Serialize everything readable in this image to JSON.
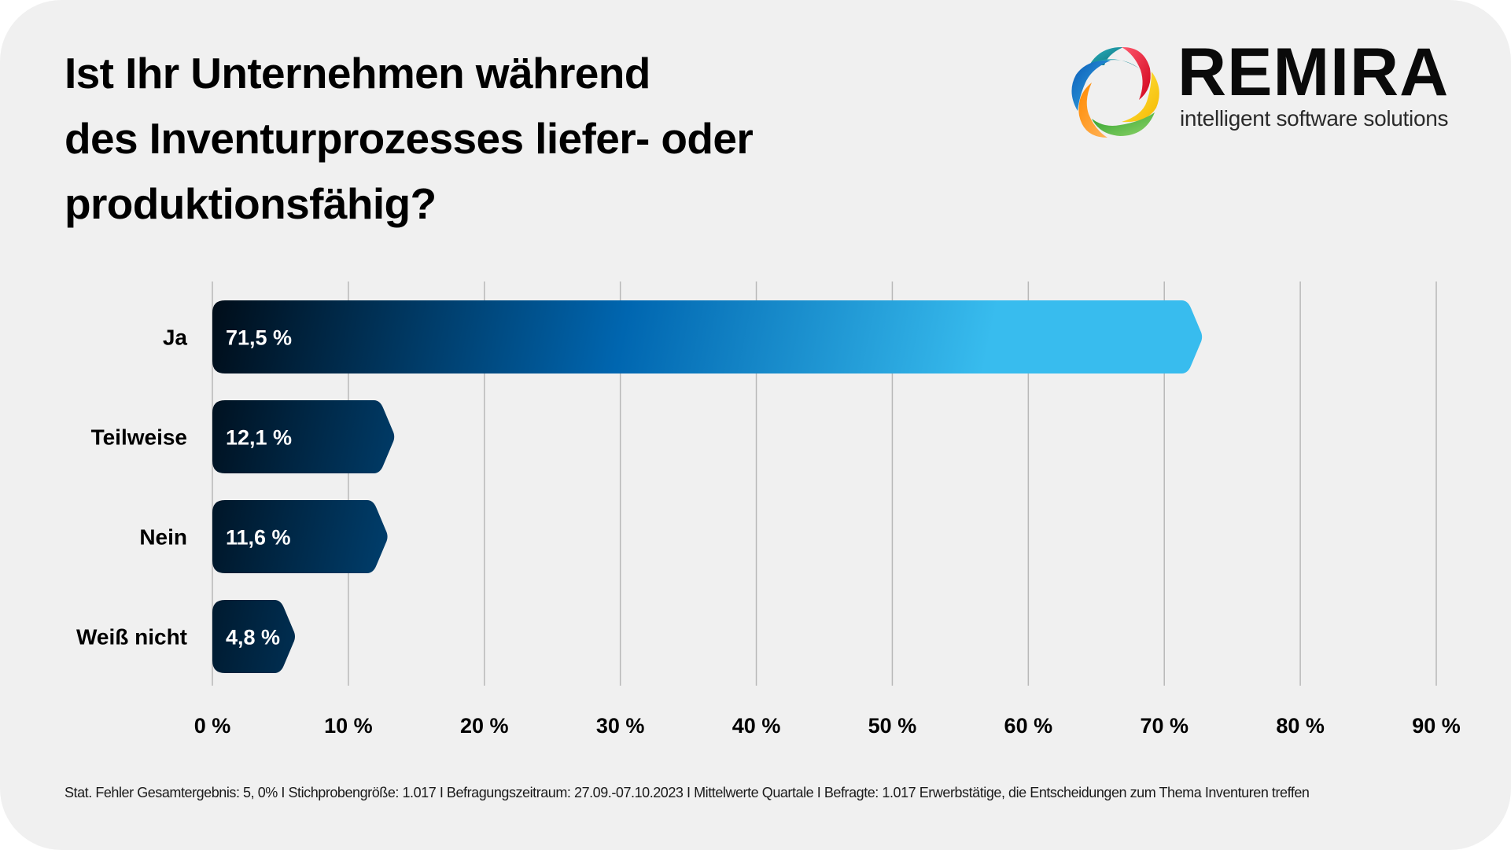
{
  "header": {
    "title_lines": [
      "Ist Ihr Unternehmen während",
      "des Inventurprozesses liefer- oder",
      "produktionsfähig?"
    ]
  },
  "logo": {
    "name": "REMIRA",
    "tagline": "intelligent software solutions",
    "icon": "remira-swirl-icon"
  },
  "chart_data": {
    "type": "bar",
    "orientation": "horizontal",
    "title": "Ist Ihr Unternehmen während des Inventurprozesses liefer- oder produktionsfähig?",
    "categories": [
      "Ja",
      "Teilweise",
      "Nein",
      "Weiß nicht"
    ],
    "values": [
      71.5,
      12.1,
      11.6,
      4.8
    ],
    "value_labels": [
      "71,5 %",
      "12,1 %",
      "11,6 %",
      "4,8 %"
    ],
    "xlabel": "",
    "ylabel": "",
    "xlim": [
      0,
      90
    ],
    "x_ticks": [
      0,
      10,
      20,
      30,
      40,
      50,
      60,
      70,
      80,
      90
    ],
    "x_tick_labels": [
      "0 %",
      "10 %",
      "20 %",
      "30 %",
      "40 %",
      "50 %",
      "60 %",
      "70 %",
      "80 %",
      "90 %"
    ],
    "grid": true,
    "legend": "none",
    "colors": {
      "gradient_start": "#000a14",
      "gradient_mid": "#0066b0",
      "gradient_end": "#38bcee",
      "gridline": "#b8b8b8"
    }
  },
  "footnote": "Stat. Fehler Gesamtergebnis: 5, 0% I Stichprobengröße: 1.017 I Befragungszeitraum: 27.09.-07.10.2023 I Mittelwerte Quartale I Befragte: 1.017 Erwerbstätige, die Entscheidungen zum Thema Inventuren treffen"
}
